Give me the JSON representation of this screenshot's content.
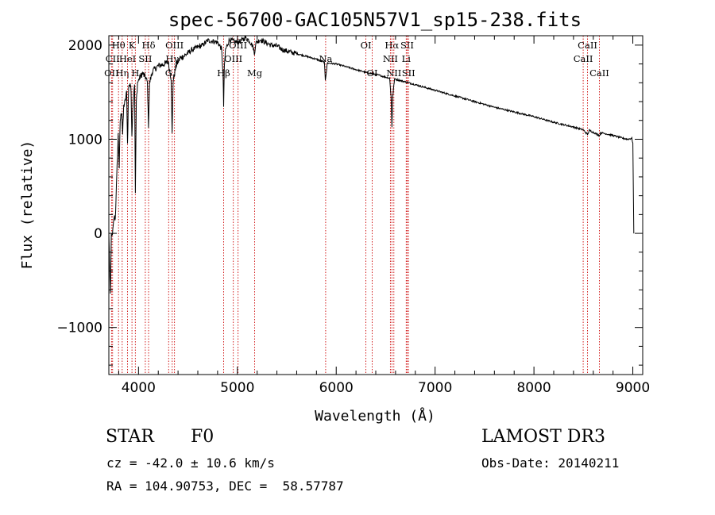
{
  "chart_data": {
    "type": "line",
    "title": "spec-56700-GAC105N57V1_sp15-238.fits",
    "xlabel": "Wavelength (Å)",
    "ylabel": "Flux (relative)",
    "xlim": [
      3700,
      9100
    ],
    "ylim": [
      -1500,
      2100
    ],
    "xticks": [
      4000,
      5000,
      6000,
      7000,
      8000,
      9000
    ],
    "yticks": [
      -1000,
      0,
      1000,
      2000
    ],
    "x_tick_labels": [
      "4000",
      "5000",
      "6000",
      "7000",
      "8000",
      "9000"
    ],
    "y_tick_labels": [
      "−1000",
      "0",
      "1000",
      "2000"
    ],
    "series": [
      {
        "name": "spectrum",
        "points": [
          [
            3700,
            0
          ],
          [
            3715,
            -650
          ],
          [
            3725,
            -50
          ],
          [
            3740,
            20
          ],
          [
            3755,
            180
          ],
          [
            3765,
            150
          ],
          [
            3780,
            600
          ],
          [
            3795,
            1050
          ],
          [
            3805,
            700
          ],
          [
            3815,
            1200
          ],
          [
            3830,
            1300
          ],
          [
            3840,
            1050
          ],
          [
            3850,
            1350
          ],
          [
            3865,
            1400
          ],
          [
            3880,
            1500
          ],
          [
            3889,
            950
          ],
          [
            3900,
            1550
          ],
          [
            3915,
            1600
          ],
          [
            3925,
            1500
          ],
          [
            3933,
            1050
          ],
          [
            3945,
            1400
          ],
          [
            3960,
            1600
          ],
          [
            3968,
            430
          ],
          [
            3978,
            1400
          ],
          [
            3990,
            1600
          ],
          [
            4010,
            1650
          ],
          [
            4040,
            1700
          ],
          [
            4075,
            1650
          ],
          [
            4090,
            1600
          ],
          [
            4101,
            1150
          ],
          [
            4112,
            1600
          ],
          [
            4140,
            1720
          ],
          [
            4200,
            1780
          ],
          [
            4260,
            1800
          ],
          [
            4300,
            1820
          ],
          [
            4330,
            1650
          ],
          [
            4340,
            1050
          ],
          [
            4350,
            1620
          ],
          [
            4380,
            1780
          ],
          [
            4420,
            1860
          ],
          [
            4480,
            1900
          ],
          [
            4540,
            1950
          ],
          [
            4600,
            1980
          ],
          [
            4650,
            2000
          ],
          [
            4700,
            2050
          ],
          [
            4760,
            2040
          ],
          [
            4800,
            2030
          ],
          [
            4840,
            1960
          ],
          [
            4855,
            1700
          ],
          [
            4861,
            1350
          ],
          [
            4868,
            1750
          ],
          [
            4880,
            1950
          ],
          [
            4920,
            2060
          ],
          [
            4960,
            2040
          ],
          [
            5000,
            2030
          ],
          [
            5030,
            2040
          ],
          [
            5080,
            2080
          ],
          [
            5120,
            2050
          ],
          [
            5160,
            1980
          ],
          [
            5172,
            1900
          ],
          [
            5185,
            2020
          ],
          [
            5230,
            2060
          ],
          [
            5280,
            2030
          ],
          [
            5340,
            2000
          ],
          [
            5400,
            1990
          ],
          [
            5460,
            1950
          ],
          [
            5520,
            1930
          ],
          [
            5600,
            1910
          ],
          [
            5700,
            1880
          ],
          [
            5800,
            1850
          ],
          [
            5880,
            1820
          ],
          [
            5890,
            1630
          ],
          [
            5896,
            1680
          ],
          [
            5910,
            1810
          ],
          [
            6000,
            1800
          ],
          [
            6100,
            1770
          ],
          [
            6200,
            1740
          ],
          [
            6300,
            1710
          ],
          [
            6400,
            1690
          ],
          [
            6500,
            1660
          ],
          [
            6540,
            1650
          ],
          [
            6555,
            1450
          ],
          [
            6563,
            1130
          ],
          [
            6572,
            1460
          ],
          [
            6590,
            1640
          ],
          [
            6700,
            1610
          ],
          [
            6800,
            1580
          ],
          [
            6900,
            1550
          ],
          [
            7000,
            1520
          ],
          [
            7200,
            1460
          ],
          [
            7400,
            1400
          ],
          [
            7600,
            1340
          ],
          [
            7800,
            1290
          ],
          [
            8000,
            1240
          ],
          [
            8200,
            1180
          ],
          [
            8400,
            1130
          ],
          [
            8498,
            1100
          ],
          [
            8542,
            1050
          ],
          [
            8560,
            1095
          ],
          [
            8662,
            1040
          ],
          [
            8680,
            1070
          ],
          [
            8800,
            1040
          ],
          [
            8900,
            1010
          ],
          [
            8950,
            1000
          ],
          [
            8990,
            1010
          ],
          [
            9000,
            960
          ],
          [
            9010,
            0
          ]
        ]
      }
    ],
    "line_markers": [
      {
        "label": "Hθ",
        "wavelength": 3798,
        "row": 1
      },
      {
        "label": "OII",
        "wavelength": 3727,
        "row": 3
      },
      {
        "label": "CII",
        "wavelength": 3738,
        "row": 2
      },
      {
        "label": "Hη",
        "wavelength": 3835,
        "row": 3
      },
      {
        "label": "HeI",
        "wavelength": 3889,
        "row": 2
      },
      {
        "label": "K",
        "wavelength": 3934,
        "row": 1
      },
      {
        "label": "SII",
        "wavelength": 4069,
        "row": 2
      },
      {
        "label": "H",
        "wavelength": 3968,
        "row": 3
      },
      {
        "label": "Hδ",
        "wavelength": 4102,
        "row": 1
      },
      {
        "label": "OIII",
        "wavelength": 4364,
        "row": 1
      },
      {
        "label": "Hγ",
        "wavelength": 4341,
        "row": 2
      },
      {
        "label": "G",
        "wavelength": 4305,
        "row": 3
      },
      {
        "label": "Hβ",
        "wavelength": 4861,
        "row": 3
      },
      {
        "label": "OIII",
        "wavelength": 4959,
        "row": 2
      },
      {
        "label": "OIII",
        "wavelength": 5007,
        "row": 1
      },
      {
        "label": "Mg",
        "wavelength": 5175,
        "row": 3
      },
      {
        "label": "Na",
        "wavelength": 5893,
        "row": 2
      },
      {
        "label": "OI",
        "wavelength": 6300,
        "row": 1
      },
      {
        "label": "OI",
        "wavelength": 6364,
        "row": 3
      },
      {
        "label": "Hα",
        "wavelength": 6563,
        "row": 1
      },
      {
        "label": "NII",
        "wavelength": 6548,
        "row": 2
      },
      {
        "label": "NII",
        "wavelength": 6583,
        "row": 3
      },
      {
        "label": "SII",
        "wavelength": 6717,
        "row": 1
      },
      {
        "label": "SII",
        "wavelength": 6731,
        "row": 3
      },
      {
        "label": "Li",
        "wavelength": 6708,
        "row": 2
      },
      {
        "label": "CaII",
        "wavelength": 8542,
        "row": 1
      },
      {
        "label": "CaII",
        "wavelength": 8498,
        "row": 2
      },
      {
        "label": "CaII",
        "wavelength": 8662,
        "row": 3
      }
    ],
    "colors": {
      "spectrum": "#000000",
      "marker": "#cc0000",
      "axes": "#000000"
    }
  },
  "info": {
    "class": "STAR",
    "subclass": "F0",
    "survey": "LAMOST DR3",
    "redshift": "cz = -42.0 ± 10.6 km/s",
    "obs_date": "Obs-Date: 20140211",
    "coords": "RA = 104.90753, DEC =  58.57787"
  }
}
